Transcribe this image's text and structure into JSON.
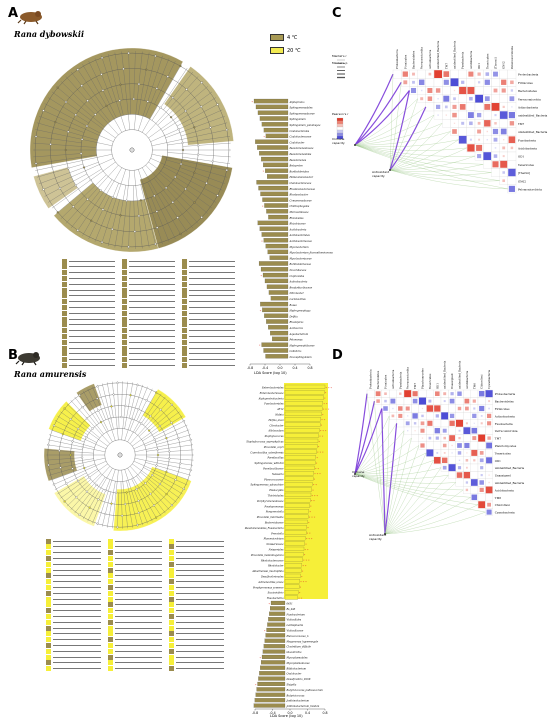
{
  "panels": {
    "A": {
      "letter": "A",
      "species": "Rana dybowskii",
      "legend": [
        {
          "label": "4 ℃",
          "color": "#a89a55"
        },
        {
          "label": "20 ℃",
          "color": "#f2ea52"
        }
      ]
    },
    "B": {
      "letter": "B",
      "species": "Rana amurensis"
    },
    "C": {
      "letter": "C"
    },
    "D": {
      "letter": "D"
    }
  },
  "colors": {
    "olive": "#9b8c4e",
    "olive_dark": "#6f6433",
    "yellow": "#f6ef38",
    "yellow_light": "#fbf69a",
    "red": "#e03a2a",
    "blue": "#4b4bd6",
    "purple": "#7a3ad8",
    "green": "#8fbf7a"
  },
  "lda_axis": {
    "label": "LDA Score (log 10)",
    "ticks": [
      "-0.8",
      "-0.4",
      "0.0",
      "0.4",
      "0.8"
    ]
  },
  "A_bars": [
    "Alphaproteo",
    "Sphingomonadales",
    "Sphingomonadaceae",
    "Sphingobium",
    "Sphingobium_yanoikuyae",
    "Caulobacterales",
    "Caulobacteraceae",
    "Caulobacter",
    "Pseudomonadaceae",
    "Pseudomonadales",
    "Pseudomonas",
    "Betaproteo",
    "Burkholderiales",
    "Haliscomenobacter",
    "Oxalobacteraceae",
    "Rhodanobacteraceae",
    "Rhodanobacter",
    "Comamonadaceae",
    "Chitinophagales",
    "Microscillaceae",
    "Rhizobiales",
    "Rhizobiaceae",
    "Acidobacteria",
    "Acidobacteriales",
    "Acidobacteriaceae",
    "Mycobacterium",
    "Mycobacterium_fluoranthenivorans",
    "Mycobacteriaceae",
    "Burkholderiaceae",
    "Nocardiaceae",
    "Cupriavidus",
    "Actinobacteria",
    "Bradyrhizobiaceae",
    "Nitrobacter",
    "Lactobacillus",
    "Bosea",
    "Hydrogenophaga",
    "Delftia",
    "Rhodoferax",
    "Acidovorax",
    "Aquabacterium",
    "Pelomonas",
    "Hydrogenophilaceae",
    "Cellvibrio",
    "Novosphingobium"
  ],
  "B_yellow_bars": [
    "Enterobacteriales",
    "Enterobacteriaceae",
    "Alphaproteobacteria",
    "Fusobacteriales",
    "AF12",
    "Hafnia",
    "Hafnia_alvei",
    "Citrobacter",
    "Allobaculum",
    "Staphylococcus",
    "Staphylococcus_saprophyticus",
    "Prevotella_copri",
    "Coprobacillus_cateniformis",
    "Paenibacillus",
    "Sphingomonas_wittichii",
    "Paenibacillaceae",
    "Neisseria",
    "Planococcaceae",
    "Sphingomonas_yabuuchiae",
    "Plesiocystis",
    "Thiotrichales",
    "Porphyromonadaceae",
    "Porphyromonas",
    "Paraprevotella",
    "Prevotella_intermedia",
    "Bacteroidaceae",
    "Pseudomonadales_Fusobacteria",
    "Prevotella",
    "Planomicrobium",
    "Neisseriaceae",
    "Neisseriales",
    "Prevotella_melaninogenica",
    "Rhodobacteraceae",
    "Rhodobacter",
    "Akkermansia_muciniphila",
    "Desulfovibrionales",
    "Actinobacillus_ureae",
    "Porphyromonas_somerae",
    "Succinivibrio",
    "Fusobacteriia"
  ],
  "B_olive_bars": [
    "0431",
    "Rs_045",
    "Fusobacterium",
    "Victivallales",
    "Lentisphaeria",
    "Victivallaceae",
    "Planococcaceae_b",
    "Megamonas_hypermegale",
    "Clostridium_difficile",
    "Gloeotrichia",
    "Mycoplasmatales",
    "Mycoplasmataceae",
    "Bifidobacterium",
    "Oxalobacter",
    "Desulfovibrio_D168",
    "Shigella",
    "Butyricicoccus_pullicaecorum",
    "Butyricicoccus",
    "Janthinobacterium",
    "Janthinobacterium_lividum"
  ],
  "C_taxa": [
    "Proteobacteria",
    "Firmicutes",
    "Bacteroidetes",
    "Verrucomicrobia",
    "Actinobacteria",
    "unidentified_Bacteria",
    "TM7",
    "unidentified_Bacteria",
    "Fusobacteria",
    "Acidobacteria",
    "OD1",
    "Tenericutes",
    "[Thermi]",
    "GN02",
    "Pelomonicrobiota"
  ],
  "D_taxa": [
    "Proteobacteria",
    "Bacteroidetes",
    "Firmicutes",
    "Actinobacteria",
    "Fusobacteria",
    "Verrucomicrobia",
    "TM7",
    "Planctomycetes",
    "Tenericutes",
    "OD1",
    "unidentified_Bacteria",
    "Unassigned",
    "unidentified_Bacteria",
    "Acidobacteria",
    "TM6",
    "Chloroflexi",
    "Cyanobacteria"
  ],
  "C_labels": {
    "immune": "Immune capacity",
    "antioxidant": "Antioxidant capacity",
    "mantel_r": "Mantel's r",
    "mantel_p": "Mantel's p",
    "pearson": "Pearson's r"
  },
  "D_labels": {
    "immune": "Immune capacity",
    "antioxidant": "Antioxidant capacity"
  }
}
